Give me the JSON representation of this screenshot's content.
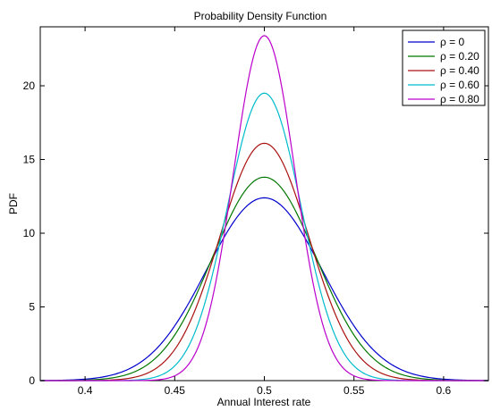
{
  "chart_data": {
    "type": "line",
    "title": "Probability Density Function",
    "xlabel": "Annual Interest rate",
    "ylabel": "PDF",
    "xlim": [
      0.375,
      0.625
    ],
    "ylim": [
      0,
      24
    ],
    "x_ticks": [
      0.4,
      0.45,
      0.5,
      0.55,
      0.6
    ],
    "x_tick_labels": [
      "0.4",
      "0.45",
      "0.5",
      "0.55",
      "0.6"
    ],
    "y_ticks": [
      0,
      5,
      10,
      15,
      20
    ],
    "y_tick_labels": [
      "0",
      "5",
      "10",
      "15",
      "20"
    ],
    "grid": false,
    "legend_position": "top-right",
    "distribution": "normal",
    "mean": 0.5,
    "series": [
      {
        "name": "ρ = 0",
        "color": "#0000cc",
        "peak": 12.4,
        "sd": 0.0322
      },
      {
        "name": "ρ = 0.20",
        "color": "#007700",
        "peak": 13.8,
        "sd": 0.0289
      },
      {
        "name": "ρ = 0.40",
        "color": "#aa1111",
        "peak": 16.1,
        "sd": 0.0248
      },
      {
        "name": "ρ = 0.60",
        "color": "#00bbcc",
        "peak": 19.5,
        "sd": 0.0205
      },
      {
        "name": "ρ = 0.80",
        "color": "#bb00cc",
        "peak": 23.4,
        "sd": 0.0171
      }
    ]
  }
}
